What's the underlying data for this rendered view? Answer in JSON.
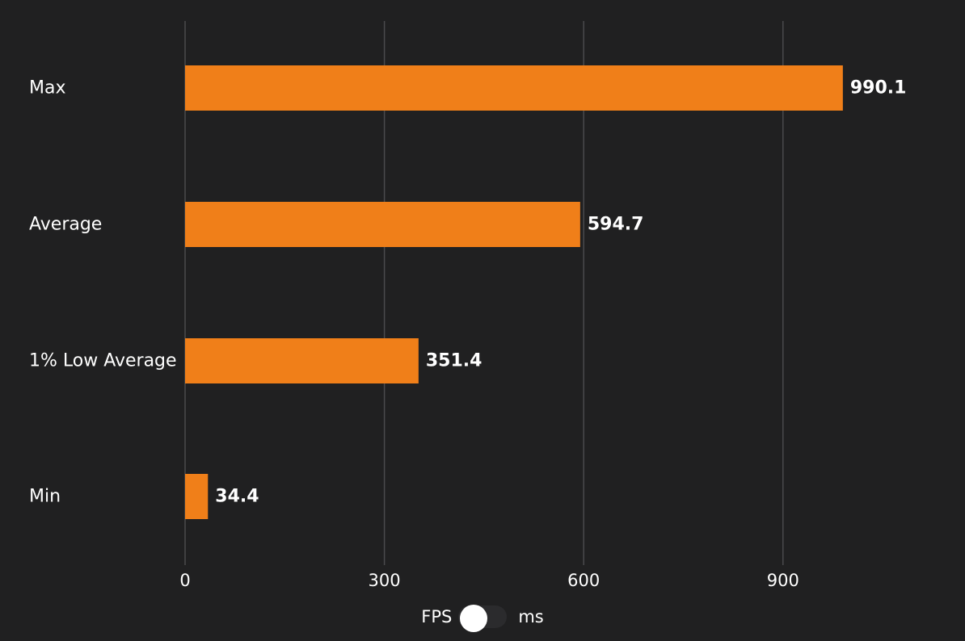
{
  "chart_data": {
    "type": "bar",
    "orientation": "horizontal",
    "categories": [
      "Max",
      "Average",
      "1% Low Average",
      "Min"
    ],
    "values": [
      990.1,
      594.7,
      351.4,
      34.4
    ],
    "value_labels": [
      "990.1",
      "594.7",
      "351.4",
      "34.4"
    ],
    "xlim": [
      0,
      1000
    ],
    "xticks": [
      0,
      300,
      600,
      900
    ],
    "xtick_labels": [
      "0",
      "300",
      "600",
      "900"
    ],
    "grid": true,
    "legend": "none",
    "colors": {
      "bar": "#f07f19",
      "background": "#202021",
      "grid": "#4a4a4c",
      "text": "#ffffff"
    }
  },
  "toggle": {
    "left_label": "FPS",
    "right_label": "ms",
    "selected": "FPS"
  }
}
